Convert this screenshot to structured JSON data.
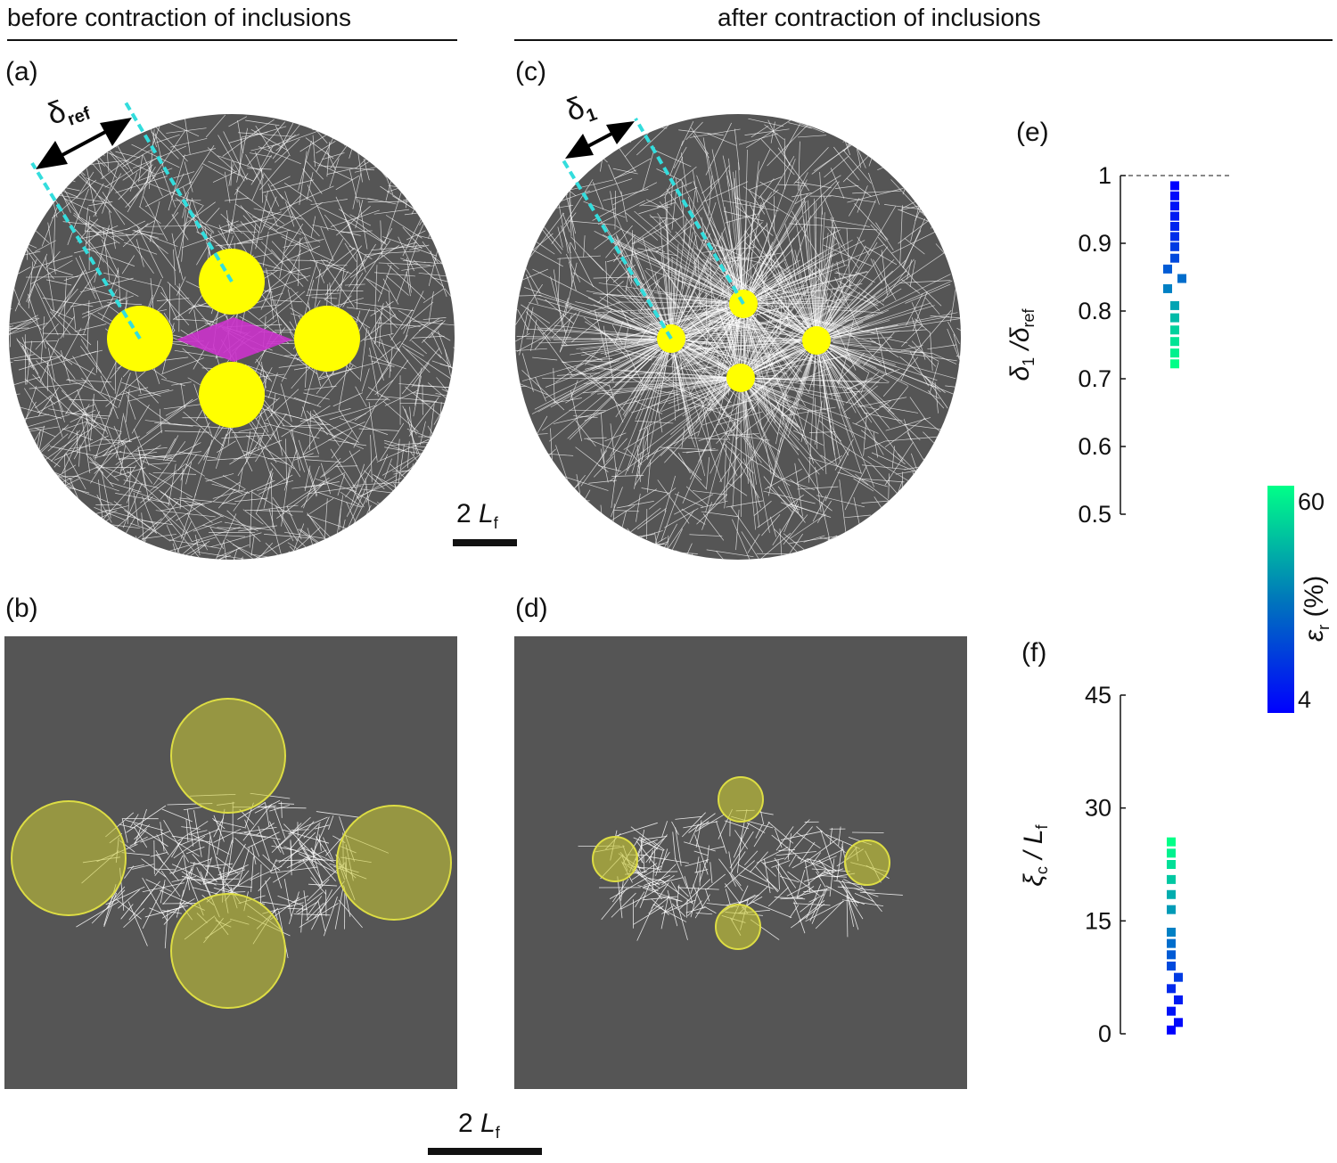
{
  "headers": {
    "before": "before contraction of inclusions",
    "after": "after contraction of inclusions"
  },
  "panel_labels": {
    "a": "(a)",
    "b": "(b)",
    "c": "(c)",
    "d": "(d)",
    "e": "(e)",
    "f": "(f)"
  },
  "annotations": {
    "delta_ref": "δ",
    "delta_ref_sub": "ref",
    "delta_one": "δ",
    "delta_one_sub": "1"
  },
  "scale_bar": {
    "value": "2",
    "unit": "L",
    "unit_sub": "f"
  },
  "colors": {
    "network_bg": "#555555",
    "fiber": "#ffffff",
    "inclusion": "#ffff00",
    "inclusion_faded": "#9a9a2a",
    "center_region": "#cc33cc",
    "guide_line": "#33dddd",
    "colormap_low": "#0000ff",
    "colormap_high": "#00ff88"
  },
  "colorbar": {
    "label": "ε",
    "label_sub": "r",
    "unit": "(%)",
    "min": 4,
    "max": 60,
    "tick_labels": [
      "60",
      "4"
    ]
  },
  "chart_data": [
    {
      "panel": "e",
      "type": "scatter",
      "ylabel": "δ",
      "ylabel_sub1": "1",
      "ylabel_mid": " /δ",
      "ylabel_sub2": "ref",
      "ylim": [
        0.5,
        1.0
      ],
      "yticks": [
        "0.5",
        "0.6",
        "0.7",
        "0.8",
        "0.9",
        "1"
      ],
      "reference_line": 1,
      "points": [
        {
          "x": 0,
          "y": 0.985,
          "eps": 4
        },
        {
          "x": 0,
          "y": 0.97,
          "eps": 6
        },
        {
          "x": 0,
          "y": 0.955,
          "eps": 8
        },
        {
          "x": 0,
          "y": 0.94,
          "eps": 10
        },
        {
          "x": 0,
          "y": 0.925,
          "eps": 12
        },
        {
          "x": 0,
          "y": 0.91,
          "eps": 14
        },
        {
          "x": 0,
          "y": 0.895,
          "eps": 17
        },
        {
          "x": 0,
          "y": 0.878,
          "eps": 20
        },
        {
          "x": -1,
          "y": 0.862,
          "eps": 24
        },
        {
          "x": 1,
          "y": 0.848,
          "eps": 28
        },
        {
          "x": -1,
          "y": 0.833,
          "eps": 32
        },
        {
          "x": 0,
          "y": 0.808,
          "eps": 40
        },
        {
          "x": 0,
          "y": 0.79,
          "eps": 45
        },
        {
          "x": 0,
          "y": 0.772,
          "eps": 50
        },
        {
          "x": 0,
          "y": 0.755,
          "eps": 54
        },
        {
          "x": 0,
          "y": 0.738,
          "eps": 57
        },
        {
          "x": 0,
          "y": 0.722,
          "eps": 60
        }
      ]
    },
    {
      "panel": "f",
      "type": "scatter",
      "ylabel": "ξ",
      "ylabel_sub1": "c",
      "ylabel_mid": " / L",
      "ylabel_sub2": "f",
      "ylim": [
        0,
        45
      ],
      "yticks": [
        "0",
        "15",
        "30",
        "45"
      ],
      "points": [
        {
          "x": 0,
          "y": 0.5,
          "eps": 4
        },
        {
          "x": 1,
          "y": 1.5,
          "eps": 6
        },
        {
          "x": 0,
          "y": 3.0,
          "eps": 8
        },
        {
          "x": 1,
          "y": 4.5,
          "eps": 10
        },
        {
          "x": 0,
          "y": 6.0,
          "eps": 13
        },
        {
          "x": 1,
          "y": 7.5,
          "eps": 17
        },
        {
          "x": 0,
          "y": 9.0,
          "eps": 20
        },
        {
          "x": 0,
          "y": 10.5,
          "eps": 24
        },
        {
          "x": 0,
          "y": 12.0,
          "eps": 28
        },
        {
          "x": 0,
          "y": 13.5,
          "eps": 32
        },
        {
          "x": 0,
          "y": 16.5,
          "eps": 38
        },
        {
          "x": 0,
          "y": 18.5,
          "eps": 42
        },
        {
          "x": 0,
          "y": 20.5,
          "eps": 48
        },
        {
          "x": 0,
          "y": 22.5,
          "eps": 53
        },
        {
          "x": 0,
          "y": 24.0,
          "eps": 57
        },
        {
          "x": 0,
          "y": 25.5,
          "eps": 60
        }
      ]
    }
  ]
}
